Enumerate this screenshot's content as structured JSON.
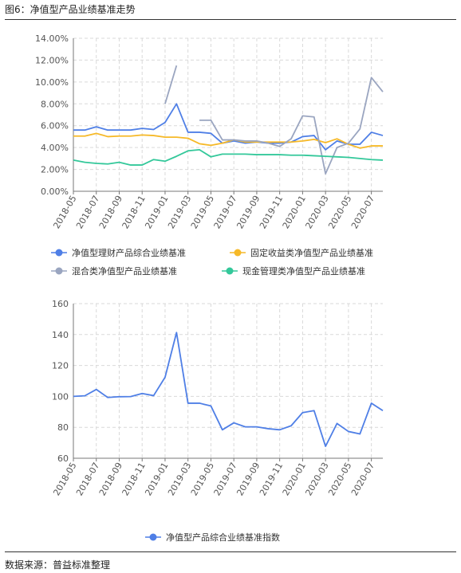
{
  "header": {
    "title": "图6：净值型产品业绩基准走势"
  },
  "footer": {
    "source": "数据来源：普益标准整理"
  },
  "chart_data": [
    {
      "type": "line",
      "categories": [
        "2018-05",
        "2018-06",
        "2018-07",
        "2018-08",
        "2018-09",
        "2018-10",
        "2018-11",
        "2018-12",
        "2019-01",
        "2019-02",
        "2019-03",
        "2019-04",
        "2019-05",
        "2019-06",
        "2019-07",
        "2019-08",
        "2019-09",
        "2019-10",
        "2019-11",
        "2019-12",
        "2020-01",
        "2020-02",
        "2020-03",
        "2020-04",
        "2020-05",
        "2020-06",
        "2020-07",
        "2020-08"
      ],
      "x_tick_labels": [
        "2018-05",
        "2018-07",
        "2018-09",
        "2018-11",
        "2019-01",
        "2019-03",
        "2019-05",
        "2019-07",
        "2019-09",
        "2019-11",
        "2020-01",
        "2020-03",
        "2020-05",
        "2020-07"
      ],
      "ylim": [
        0,
        14
      ],
      "y_ticks": [
        "0.00%",
        "2.00%",
        "4.00%",
        "6.00%",
        "8.00%",
        "10.00%",
        "12.00%",
        "14.00%"
      ],
      "grid": true,
      "legend_position": "bottom",
      "series": [
        {
          "name": "净值型理财产品综合业绩基准",
          "color": "#4f7fe6",
          "values": [
            5.6,
            5.6,
            5.9,
            5.6,
            5.6,
            5.6,
            5.75,
            5.65,
            6.3,
            8.0,
            5.4,
            5.4,
            5.3,
            4.4,
            4.6,
            4.4,
            4.5,
            4.4,
            4.4,
            4.5,
            5.0,
            5.1,
            3.8,
            4.6,
            4.3,
            4.3,
            5.4,
            5.1
          ]
        },
        {
          "name": "固定收益类净值型产品业绩基准",
          "color": "#f6b928",
          "values": [
            5.05,
            5.05,
            5.3,
            5.0,
            5.05,
            5.05,
            5.15,
            5.1,
            4.95,
            4.95,
            4.85,
            4.35,
            4.2,
            4.4,
            4.7,
            4.5,
            4.5,
            4.5,
            4.5,
            4.5,
            4.6,
            4.75,
            4.45,
            4.8,
            4.3,
            3.95,
            4.15,
            4.15
          ]
        },
        {
          "name": "混合类净值型产品业绩基准",
          "color": "#9aa5c0",
          "values": [
            null,
            null,
            null,
            null,
            null,
            null,
            null,
            null,
            8.0,
            11.5,
            null,
            6.5,
            6.5,
            4.7,
            4.7,
            4.6,
            4.6,
            4.4,
            4.1,
            4.8,
            6.9,
            6.8,
            1.6,
            4.0,
            4.4,
            5.7,
            10.4,
            9.1
          ]
        },
        {
          "name": "现金管理类净值型产品业绩基准",
          "color": "#33c89a",
          "values": [
            2.85,
            2.65,
            2.55,
            2.5,
            2.65,
            2.4,
            2.4,
            2.9,
            2.75,
            3.2,
            3.7,
            3.8,
            3.15,
            3.4,
            3.4,
            3.4,
            3.35,
            3.35,
            3.35,
            3.3,
            3.3,
            3.25,
            3.2,
            3.15,
            3.1,
            3.0,
            2.9,
            2.85
          ]
        }
      ]
    },
    {
      "type": "line",
      "categories": [
        "2018-05",
        "2018-06",
        "2018-07",
        "2018-08",
        "2018-09",
        "2018-10",
        "2018-11",
        "2018-12",
        "2019-01",
        "2019-02",
        "2019-03",
        "2019-04",
        "2019-05",
        "2019-06",
        "2019-07",
        "2019-08",
        "2019-09",
        "2019-10",
        "2019-11",
        "2019-12",
        "2020-01",
        "2020-02",
        "2020-03",
        "2020-04",
        "2020-05",
        "2020-06",
        "2020-07",
        "2020-08"
      ],
      "x_tick_labels": [
        "2018-05",
        "2018-07",
        "2018-09",
        "2018-11",
        "2019-01",
        "2019-03",
        "2019-05",
        "2019-07",
        "2019-09",
        "2019-11",
        "2020-01",
        "2020-03",
        "2020-05",
        "2020-07"
      ],
      "ylim": [
        60,
        160
      ],
      "y_ticks": [
        "60",
        "80",
        "100",
        "120",
        "140",
        "160"
      ],
      "grid": true,
      "legend_position": "bottom",
      "series": [
        {
          "name": "净值型产品综合业绩基准指数",
          "color": "#4f7fe6",
          "values": [
            100,
            100.4,
            104.5,
            99.3,
            99.8,
            99.9,
            101.9,
            100.5,
            112.4,
            141.3,
            95.6,
            95.6,
            93.8,
            78.4,
            82.9,
            80.3,
            80.3,
            79.1,
            78.4,
            81.0,
            89.5,
            90.8,
            67.7,
            82.5,
            77.3,
            75.7,
            95.6,
            90.8
          ]
        }
      ]
    }
  ]
}
